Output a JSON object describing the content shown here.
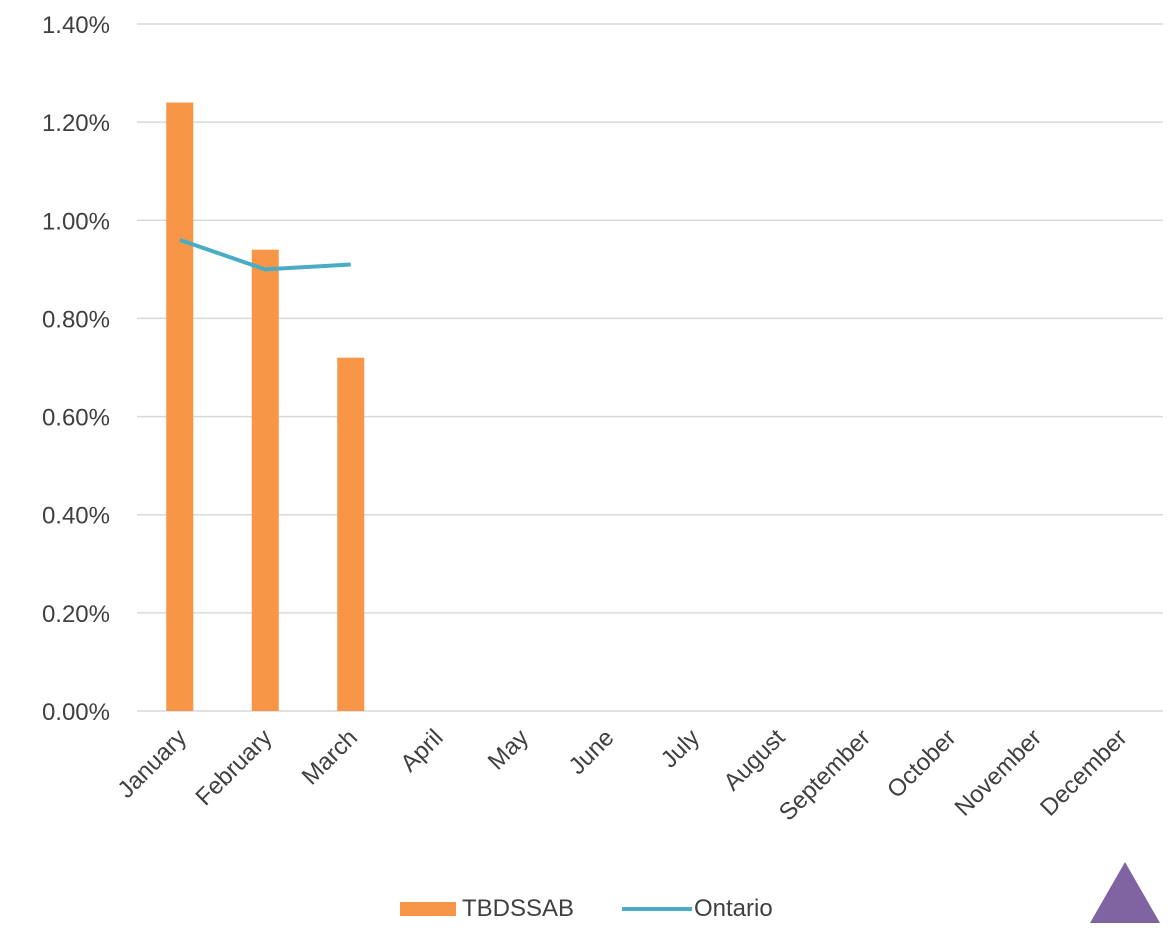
{
  "chart_data": {
    "type": "bar",
    "categories": [
      "January",
      "February",
      "March",
      "April",
      "May",
      "June",
      "July",
      "August",
      "September",
      "October",
      "November",
      "December"
    ],
    "series": [
      {
        "name": "TBDSSAB",
        "type": "bar",
        "values": [
          1.24,
          0.94,
          0.72,
          null,
          null,
          null,
          null,
          null,
          null,
          null,
          null,
          null
        ],
        "color": "#F79646"
      },
      {
        "name": "Ontario",
        "type": "line",
        "values": [
          0.96,
          0.9,
          0.91,
          null,
          null,
          null,
          null,
          null,
          null,
          null,
          null,
          null
        ],
        "color": "#4BACC6"
      }
    ],
    "y_ticks": [
      "0.00%",
      "0.20%",
      "0.40%",
      "0.60%",
      "0.80%",
      "1.00%",
      "1.20%",
      "1.40%"
    ],
    "ylim": [
      0,
      1.4
    ],
    "y_unit": "%",
    "grid": true,
    "legend_position": "bottom-center",
    "title": "",
    "xlabel": "",
    "ylabel": ""
  },
  "colors": {
    "gridline": "#D9D9D9",
    "tick_text": "#404040",
    "corner_accent": "#8064A2"
  }
}
